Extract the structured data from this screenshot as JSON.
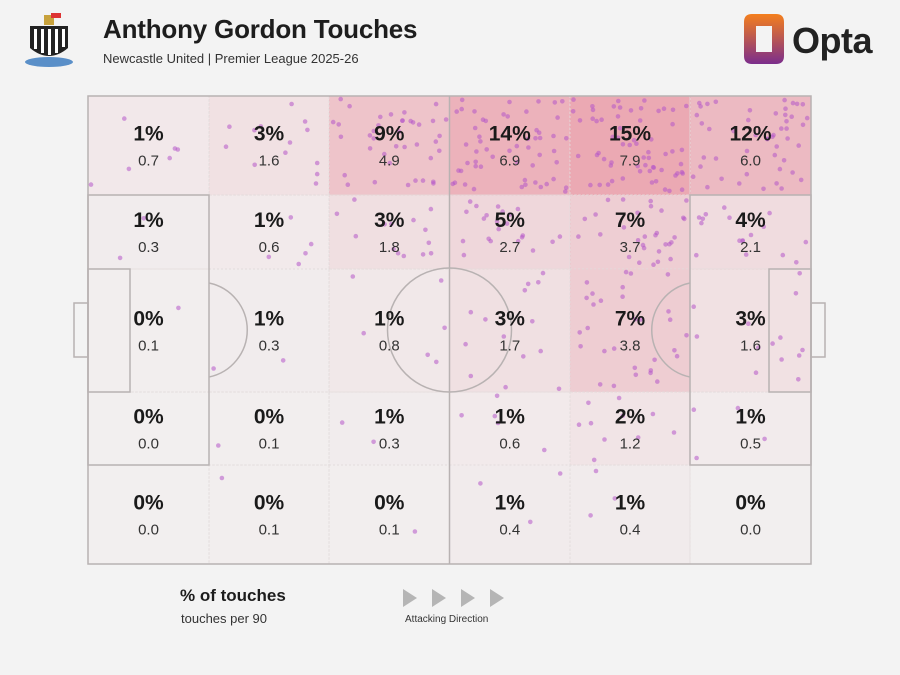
{
  "header": {
    "title": "Anthony Gordon Touches",
    "subtitle": "Newcastle United | Premier League 2025-26",
    "brand": "Opta"
  },
  "legend": {
    "primary": "% of touches",
    "secondary": "touches per 90",
    "direction_label": "Attacking Direction"
  },
  "colors": {
    "background": "#f3f3f3",
    "pitch": "#f5f2f2",
    "lines": "#b8b2b2",
    "heat": "#e8929f",
    "dots": "#b455c8",
    "brand_orange": "#f47f1d",
    "brand_purple": "#7b2d8c"
  },
  "chart_data": {
    "type": "heatmap",
    "title": "Anthony Gordon Touches",
    "subtitle": "Newcastle United | Premier League 2025-26",
    "orientation": "attacking left to right",
    "rows": 5,
    "cols": 6,
    "cells": [
      [
        {
          "pct": "1%",
          "per90": "0.7"
        },
        {
          "pct": "3%",
          "per90": "1.6"
        },
        {
          "pct": "9%",
          "per90": "4.9"
        },
        {
          "pct": "14%",
          "per90": "6.9"
        },
        {
          "pct": "15%",
          "per90": "7.9"
        },
        {
          "pct": "12%",
          "per90": "6.0"
        }
      ],
      [
        {
          "pct": "1%",
          "per90": "0.3"
        },
        {
          "pct": "1%",
          "per90": "0.6"
        },
        {
          "pct": "3%",
          "per90": "1.8"
        },
        {
          "pct": "5%",
          "per90": "2.7"
        },
        {
          "pct": "7%",
          "per90": "3.7"
        },
        {
          "pct": "4%",
          "per90": "2.1"
        }
      ],
      [
        {
          "pct": "0%",
          "per90": "0.1"
        },
        {
          "pct": "1%",
          "per90": "0.3"
        },
        {
          "pct": "1%",
          "per90": "0.8"
        },
        {
          "pct": "3%",
          "per90": "1.7"
        },
        {
          "pct": "7%",
          "per90": "3.8"
        },
        {
          "pct": "3%",
          "per90": "1.6"
        }
      ],
      [
        {
          "pct": "0%",
          "per90": "0.0"
        },
        {
          "pct": "0%",
          "per90": "0.1"
        },
        {
          "pct": "1%",
          "per90": "0.3"
        },
        {
          "pct": "1%",
          "per90": "0.6"
        },
        {
          "pct": "2%",
          "per90": "1.2"
        },
        {
          "pct": "1%",
          "per90": "0.5"
        }
      ],
      [
        {
          "pct": "0%",
          "per90": "0.0"
        },
        {
          "pct": "0%",
          "per90": "0.1"
        },
        {
          "pct": "0%",
          "per90": "0.1"
        },
        {
          "pct": "1%",
          "per90": "0.4"
        },
        {
          "pct": "1%",
          "per90": "0.4"
        },
        {
          "pct": "0%",
          "per90": "0.0"
        }
      ]
    ]
  }
}
